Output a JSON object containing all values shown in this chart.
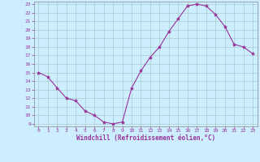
{
  "x": [
    0,
    1,
    2,
    3,
    4,
    5,
    6,
    7,
    8,
    9,
    10,
    11,
    12,
    13,
    14,
    15,
    16,
    17,
    18,
    19,
    20,
    21,
    22,
    23
  ],
  "y": [
    15.0,
    14.5,
    13.2,
    12.0,
    11.7,
    10.5,
    10.0,
    9.2,
    9.0,
    9.2,
    13.2,
    15.2,
    16.8,
    18.0,
    19.8,
    21.3,
    22.8,
    23.0,
    22.8,
    21.8,
    20.4,
    18.3,
    18.0,
    17.2
  ],
  "line_color": "#993399",
  "marker": "*",
  "marker_size": 3,
  "bg_color": "#cceeff",
  "grid_color": "#aacccc",
  "xlabel": "Windchill (Refroidissement éolien,°C)",
  "xlabel_color": "#993399",
  "tick_color": "#993399",
  "ylim": [
    9,
    23
  ],
  "xlim": [
    0,
    23
  ],
  "yticks": [
    9,
    10,
    11,
    12,
    13,
    14,
    15,
    16,
    17,
    18,
    19,
    20,
    21,
    22,
    23
  ],
  "xticks": [
    0,
    1,
    2,
    3,
    4,
    5,
    6,
    7,
    8,
    9,
    10,
    11,
    12,
    13,
    14,
    15,
    16,
    17,
    18,
    19,
    20,
    21,
    22,
    23
  ]
}
